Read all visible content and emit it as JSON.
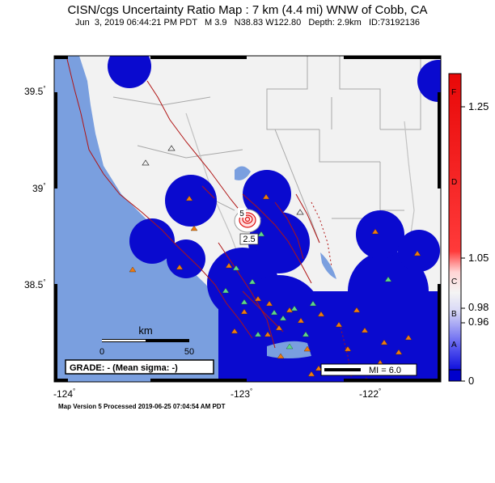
{
  "header": {
    "title": "CISN/cgs Uncertainty Ratio Map : 7 km (4.4 mi) WNW of Cobb, CA",
    "subtitle": "Jun  3, 2019 06:44:21 PM PDT   M 3.9   N38.83 W122.80   Depth: 2.9km   ID:73192136"
  },
  "axes": {
    "lat_labels": [
      "39.5",
      "39",
      "38.5"
    ],
    "lon_labels": [
      "-124",
      "-123",
      "-122"
    ]
  },
  "contours": {
    "label_outer": "2.5",
    "label_inner": "5"
  },
  "scalebar": {
    "unit": "km",
    "start": "0",
    "end": "50"
  },
  "grade_box": {
    "text": "GRADE: - (Mean sigma: -)"
  },
  "mi_legend": {
    "text": "MI = 6.0"
  },
  "colorbar": {
    "ticks": [
      "1.25",
      "1.05",
      "0.98",
      "0.96",
      "0"
    ],
    "grades": [
      "F",
      "D",
      "C",
      "B",
      "A"
    ]
  },
  "footer": {
    "version": "Map Version 5 Processed 2019-06-25 07:04:54 AM PDT"
  },
  "colors": {
    "ocean": "#7a9fdf",
    "land": "#f2f2f2",
    "coverage": "#0a0acf",
    "faults": "#b01414",
    "stations_orange": "#ee7a12",
    "stations_green": "#5fd68a"
  }
}
